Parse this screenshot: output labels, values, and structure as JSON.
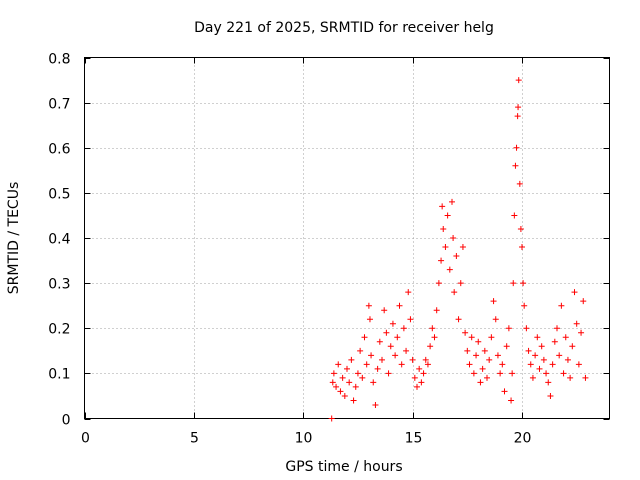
{
  "chart_data": {
    "type": "scatter",
    "title": "Day 221 of 2025, SRMTID for receiver helg",
    "xlabel": "GPS time / hours",
    "ylabel": "SRMTID / TECUs",
    "xlim": [
      0,
      24
    ],
    "ylim": [
      0,
      0.8
    ],
    "xticks": [
      0,
      5,
      10,
      15,
      20
    ],
    "yticks": [
      0,
      0.1,
      0.2,
      0.3,
      0.4,
      0.5,
      0.6,
      0.7,
      0.8
    ],
    "xtick_labels": [
      "0",
      "5",
      "10",
      "15",
      "20"
    ],
    "ytick_labels": [
      "0",
      "0.1",
      "0.2",
      "0.3",
      "0.4",
      "0.5",
      "0.6",
      "0.7",
      "0.8"
    ],
    "grid": true,
    "marker": "plus",
    "color": "#ff0000",
    "series": [
      {
        "name": "SRMTID",
        "points": [
          [
            11.3,
            0.0
          ],
          [
            11.35,
            0.08
          ],
          [
            11.4,
            0.1
          ],
          [
            11.5,
            0.07
          ],
          [
            11.6,
            0.12
          ],
          [
            11.7,
            0.06
          ],
          [
            11.8,
            0.09
          ],
          [
            11.9,
            0.05
          ],
          [
            12.0,
            0.11
          ],
          [
            12.1,
            0.08
          ],
          [
            12.2,
            0.13
          ],
          [
            12.3,
            0.04
          ],
          [
            12.4,
            0.07
          ],
          [
            12.5,
            0.1
          ],
          [
            12.6,
            0.15
          ],
          [
            12.7,
            0.09
          ],
          [
            12.8,
            0.18
          ],
          [
            12.9,
            0.12
          ],
          [
            13.0,
            0.25
          ],
          [
            13.05,
            0.22
          ],
          [
            13.1,
            0.14
          ],
          [
            13.2,
            0.08
          ],
          [
            13.3,
            0.03
          ],
          [
            13.4,
            0.11
          ],
          [
            13.5,
            0.17
          ],
          [
            13.6,
            0.13
          ],
          [
            13.7,
            0.24
          ],
          [
            13.8,
            0.19
          ],
          [
            13.9,
            0.1
          ],
          [
            14.0,
            0.16
          ],
          [
            14.1,
            0.21
          ],
          [
            14.2,
            0.14
          ],
          [
            14.3,
            0.18
          ],
          [
            14.4,
            0.25
          ],
          [
            14.5,
            0.12
          ],
          [
            14.6,
            0.2
          ],
          [
            14.7,
            0.15
          ],
          [
            14.8,
            0.28
          ],
          [
            14.9,
            0.22
          ],
          [
            15.0,
            0.13
          ],
          [
            15.1,
            0.09
          ],
          [
            15.2,
            0.07
          ],
          [
            15.3,
            0.11
          ],
          [
            15.4,
            0.08
          ],
          [
            15.5,
            0.1
          ],
          [
            15.6,
            0.13
          ],
          [
            15.7,
            0.12
          ],
          [
            15.8,
            0.16
          ],
          [
            15.9,
            0.2
          ],
          [
            16.0,
            0.18
          ],
          [
            16.1,
            0.24
          ],
          [
            16.2,
            0.3
          ],
          [
            16.3,
            0.35
          ],
          [
            16.35,
            0.47
          ],
          [
            16.4,
            0.42
          ],
          [
            16.5,
            0.38
          ],
          [
            16.6,
            0.45
          ],
          [
            16.7,
            0.33
          ],
          [
            16.8,
            0.48
          ],
          [
            16.85,
            0.4
          ],
          [
            16.9,
            0.28
          ],
          [
            17.0,
            0.36
          ],
          [
            17.1,
            0.22
          ],
          [
            17.2,
            0.3
          ],
          [
            17.3,
            0.38
          ],
          [
            17.4,
            0.19
          ],
          [
            17.5,
            0.15
          ],
          [
            17.6,
            0.12
          ],
          [
            17.7,
            0.18
          ],
          [
            17.8,
            0.1
          ],
          [
            17.9,
            0.14
          ],
          [
            18.0,
            0.17
          ],
          [
            18.1,
            0.08
          ],
          [
            18.2,
            0.11
          ],
          [
            18.3,
            0.15
          ],
          [
            18.4,
            0.09
          ],
          [
            18.5,
            0.13
          ],
          [
            18.6,
            0.18
          ],
          [
            18.7,
            0.26
          ],
          [
            18.8,
            0.22
          ],
          [
            18.9,
            0.14
          ],
          [
            19.0,
            0.1
          ],
          [
            19.1,
            0.12
          ],
          [
            19.2,
            0.06
          ],
          [
            19.3,
            0.16
          ],
          [
            19.4,
            0.2
          ],
          [
            19.5,
            0.04
          ],
          [
            19.55,
            0.1
          ],
          [
            19.6,
            0.3
          ],
          [
            19.65,
            0.45
          ],
          [
            19.7,
            0.56
          ],
          [
            19.75,
            0.6
          ],
          [
            19.8,
            0.67
          ],
          [
            19.82,
            0.69
          ],
          [
            19.85,
            0.75
          ],
          [
            19.9,
            0.52
          ],
          [
            19.95,
            0.42
          ],
          [
            20.0,
            0.38
          ],
          [
            20.05,
            0.3
          ],
          [
            20.1,
            0.25
          ],
          [
            20.2,
            0.2
          ],
          [
            20.3,
            0.15
          ],
          [
            20.4,
            0.12
          ],
          [
            20.5,
            0.09
          ],
          [
            20.6,
            0.14
          ],
          [
            20.7,
            0.18
          ],
          [
            20.8,
            0.11
          ],
          [
            20.9,
            0.16
          ],
          [
            21.0,
            0.13
          ],
          [
            21.1,
            0.1
          ],
          [
            21.2,
            0.08
          ],
          [
            21.3,
            0.05
          ],
          [
            21.4,
            0.12
          ],
          [
            21.5,
            0.17
          ],
          [
            21.6,
            0.2
          ],
          [
            21.7,
            0.14
          ],
          [
            21.8,
            0.25
          ],
          [
            21.9,
            0.1
          ],
          [
            22.0,
            0.18
          ],
          [
            22.1,
            0.13
          ],
          [
            22.2,
            0.09
          ],
          [
            22.3,
            0.16
          ],
          [
            22.4,
            0.28
          ],
          [
            22.5,
            0.21
          ],
          [
            22.6,
            0.12
          ],
          [
            22.7,
            0.19
          ],
          [
            22.8,
            0.26
          ],
          [
            22.9,
            0.09
          ]
        ]
      }
    ]
  }
}
